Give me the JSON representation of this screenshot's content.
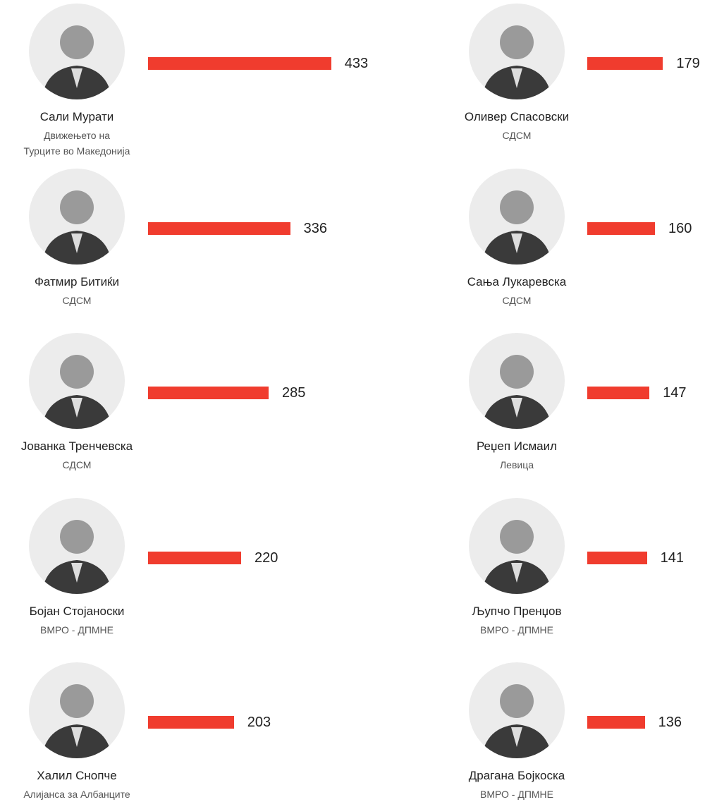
{
  "chart_data": {
    "type": "bar",
    "categories": [
      "Сали Мурати",
      "Фатмир Битиќи",
      "Јованка Тренчевска",
      "Бојан Стојаноски",
      "Халил Снопче",
      "Оливер Спасовски",
      "Сања Лукаревска",
      "Реџеп Исмаил",
      "Љупчо Пренџов",
      "Драгана Бојкоска"
    ],
    "parties": [
      "Движењето на\nТурците во Македонија",
      "СДСМ",
      "СДСМ",
      "ВМРО - ДПМНЕ",
      "Алијанса за Албанците",
      "СДСМ",
      "СДСМ",
      "Левица",
      "ВМРО - ДПМНЕ",
      "ВМРО - ДПМНЕ"
    ],
    "values": [
      433,
      336,
      285,
      220,
      203,
      179,
      160,
      147,
      141,
      136
    ],
    "color": "#f03c2e"
  }
}
